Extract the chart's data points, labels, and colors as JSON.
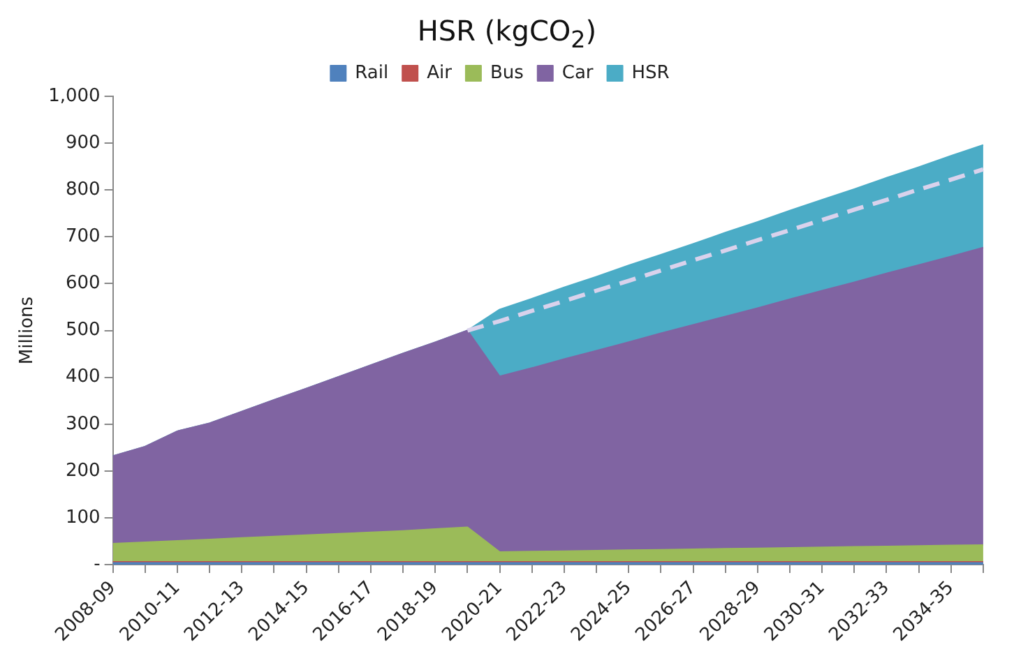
{
  "chart_data": {
    "type": "area",
    "title": "HSR (kgCO$_{2}$)",
    "ylabel": "Millions",
    "stacked": true,
    "legend": "top",
    "grid": false,
    "marker": "none",
    "categories": [
      "2008-09",
      null,
      "2010-11",
      null,
      "2012-13",
      null,
      "2014-15",
      null,
      "2016-17",
      null,
      "2018-19",
      null,
      "2020-21",
      null,
      "2022-23",
      null,
      "2024-25",
      null,
      "2026-27",
      null,
      "2028-29",
      null,
      "2030-31",
      null,
      "2032-33",
      null,
      "2034-35",
      null
    ],
    "ylim": [
      0,
      1000
    ],
    "yticks": [
      {
        "value": 0,
        "label": "-"
      },
      100,
      200,
      300,
      400,
      500,
      600,
      700,
      800,
      900,
      {
        "value": 1000,
        "label": "1,000"
      }
    ],
    "series": [
      {
        "name": "Rail",
        "color": "#4f81bd",
        "values": [
          4,
          4,
          4,
          4,
          4,
          4,
          4,
          4,
          4,
          4,
          4,
          4,
          4,
          4,
          4,
          4,
          4,
          4,
          4,
          4,
          4,
          4,
          4,
          4,
          4,
          4,
          4,
          4
        ]
      },
      {
        "name": "Air",
        "color": "#c0504d",
        "values": [
          2,
          2,
          2,
          2,
          2,
          2,
          2,
          2,
          2,
          2,
          2,
          2,
          2,
          2,
          2,
          2,
          2,
          2,
          2,
          2,
          2,
          2,
          2,
          2,
          2,
          2,
          2,
          2
        ]
      },
      {
        "name": "Bus",
        "color": "#9bbb59",
        "values": [
          39,
          42,
          45,
          48,
          51,
          54,
          57,
          60,
          63,
          66,
          70,
          74,
          21,
          22,
          23,
          24,
          25,
          26,
          27,
          28,
          29,
          30,
          31,
          32,
          33,
          34,
          35,
          36
        ]
      },
      {
        "name": "Car",
        "color": "#8064a2",
        "values": [
          187,
          204,
          234,
          248,
          270,
          292,
          313,
          335,
          357,
          379,
          399,
          420,
          375,
          392,
          410,
          427,
          444,
          462,
          479,
          496,
          513,
          531,
          548,
          565,
          583,
          600,
          617,
          635
        ]
      },
      {
        "name": "HSR",
        "color": "#4bacc6",
        "values": [
          0,
          0,
          0,
          0,
          0,
          0,
          0,
          0,
          0,
          0,
          0,
          0,
          143,
          148,
          153,
          158,
          164,
          168,
          173,
          179,
          184,
          189,
          194,
          199,
          204,
          209,
          215,
          219
        ]
      },
      {
        "type": "line",
        "line_style": "dashed",
        "color": "#d9d2ec",
        "values": [
          null,
          null,
          null,
          null,
          null,
          null,
          null,
          null,
          null,
          null,
          null,
          500,
          520,
          542,
          563,
          585,
          606,
          628,
          650,
          671,
          693,
          714,
          736,
          758,
          779,
          801,
          822,
          844
        ]
      }
    ]
  }
}
